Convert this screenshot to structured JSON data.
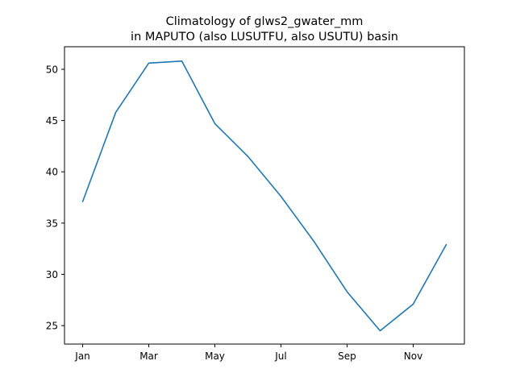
{
  "chart_data": {
    "type": "line",
    "title_line1": "Climatology of glws2_gwater_mm",
    "title_line2": "in MAPUTO (also LUSUTFU, also USUTU) basin",
    "xlabel": "",
    "ylabel": "",
    "x": [
      "Jan",
      "Feb",
      "Mar",
      "Apr",
      "May",
      "Jun",
      "Jul",
      "Aug",
      "Sep",
      "Oct",
      "Nov",
      "Dec"
    ],
    "x_tick_labels": [
      "Jan",
      "Mar",
      "May",
      "Jul",
      "Sep",
      "Nov"
    ],
    "series": [
      {
        "values": [
          37.1,
          45.8,
          50.6,
          50.8,
          44.7,
          41.5,
          37.6,
          33.2,
          28.3,
          24.5,
          27.1,
          32.9
        ]
      }
    ],
    "ylim": [
      23.2,
      52.2
    ],
    "y_ticks": [
      25,
      30,
      35,
      40,
      45,
      50
    ],
    "grid": false,
    "colors": {
      "line": "#1f77b4",
      "axes": "#000000",
      "background": "#ffffff"
    }
  }
}
